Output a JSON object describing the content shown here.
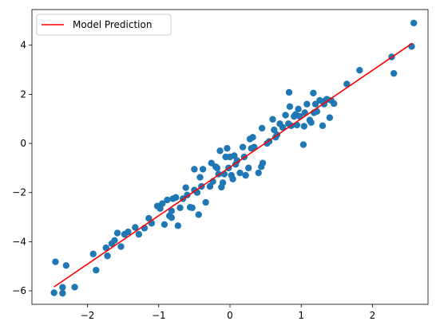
{
  "chart_data": {
    "type": "scatter",
    "title": "",
    "xlabel": "",
    "ylabel": "",
    "xlim": [
      -2.78,
      2.78
    ],
    "ylim": [
      -6.55,
      5.45
    ],
    "xticks": [
      -2,
      -1,
      0,
      1,
      2
    ],
    "yticks": [
      -6,
      -4,
      -2,
      0,
      2,
      4
    ],
    "xtick_labels": [
      "−2",
      "−1",
      "0",
      "1",
      "2"
    ],
    "ytick_labels": [
      "−6",
      "−4",
      "−2",
      "0",
      "2",
      "4"
    ],
    "grid": false,
    "legend": {
      "location": "top-left",
      "entries": [
        "Model Prediction"
      ]
    },
    "series": [
      {
        "type": "scatter",
        "color": "#1f77b4",
        "points": [
          [
            -2.47,
            -6.08
          ],
          [
            -2.45,
            -4.82
          ],
          [
            -2.35,
            -5.86
          ],
          [
            -2.35,
            -6.1
          ],
          [
            -2.3,
            -4.97
          ],
          [
            -2.18,
            -5.85
          ],
          [
            -1.92,
            -4.5
          ],
          [
            -1.88,
            -5.16
          ],
          [
            -1.74,
            -4.25
          ],
          [
            -1.72,
            -4.58
          ],
          [
            -1.66,
            -4.08
          ],
          [
            -1.62,
            -3.95
          ],
          [
            -1.58,
            -3.65
          ],
          [
            -1.53,
            -4.2
          ],
          [
            -1.48,
            -3.7
          ],
          [
            -1.43,
            -3.6
          ],
          [
            -1.28,
            -3.7
          ],
          [
            -1.2,
            -3.45
          ],
          [
            -1.14,
            -3.05
          ],
          [
            -1.1,
            -3.25
          ],
          [
            -1.02,
            -2.55
          ],
          [
            -0.98,
            -2.65
          ],
          [
            -0.95,
            -2.45
          ],
          [
            -0.92,
            -3.3
          ],
          [
            -0.88,
            -2.3
          ],
          [
            -0.85,
            -2.95
          ],
          [
            -0.82,
            -3.02
          ],
          [
            -0.8,
            -2.25
          ],
          [
            -0.76,
            -2.2
          ],
          [
            -0.73,
            -3.35
          ],
          [
            -0.7,
            -2.62
          ],
          [
            -0.66,
            -2.25
          ],
          [
            -0.62,
            -1.8
          ],
          [
            -0.6,
            -2.1
          ],
          [
            -0.56,
            -2.6
          ],
          [
            -0.53,
            -2.62
          ],
          [
            -0.5,
            -1.9
          ],
          [
            -0.5,
            -1.05
          ],
          [
            -0.46,
            -2.0
          ],
          [
            -0.44,
            -2.9
          ],
          [
            -0.42,
            -1.38
          ],
          [
            -0.4,
            -1.75
          ],
          [
            -0.38,
            -1.05
          ],
          [
            -0.34,
            -2.4
          ],
          [
            -0.28,
            -1.75
          ],
          [
            -0.26,
            -0.8
          ],
          [
            -0.24,
            -1.55
          ],
          [
            -0.2,
            -0.95
          ],
          [
            -0.18,
            -1.0
          ],
          [
            -0.16,
            -1.25
          ],
          [
            -0.14,
            -0.3
          ],
          [
            -0.12,
            -1.78
          ],
          [
            -0.1,
            -1.6
          ],
          [
            -0.08,
            -1.25
          ],
          [
            -0.06,
            -0.55
          ],
          [
            -0.04,
            -0.2
          ],
          [
            -0.02,
            -1.0
          ],
          [
            0.0,
            -0.55
          ],
          [
            0.02,
            -1.3
          ],
          [
            0.04,
            -1.45
          ],
          [
            0.06,
            -0.5
          ],
          [
            0.08,
            -0.85
          ],
          [
            0.1,
            -0.7
          ],
          [
            0.14,
            -1.2
          ],
          [
            0.18,
            -0.15
          ],
          [
            0.2,
            -0.55
          ],
          [
            0.22,
            -1.3
          ],
          [
            0.26,
            -1.0
          ],
          [
            0.28,
            0.18
          ],
          [
            0.3,
            -0.2
          ],
          [
            0.32,
            0.25
          ],
          [
            0.34,
            -0.15
          ],
          [
            0.4,
            -1.2
          ],
          [
            0.44,
            -0.95
          ],
          [
            0.46,
            -0.8
          ],
          [
            0.45,
            0.62
          ],
          [
            0.52,
            0.0
          ],
          [
            0.55,
            0.08
          ],
          [
            0.6,
            0.98
          ],
          [
            0.62,
            0.55
          ],
          [
            0.64,
            0.25
          ],
          [
            0.66,
            0.35
          ],
          [
            0.7,
            0.8
          ],
          [
            0.74,
            0.65
          ],
          [
            0.78,
            1.15
          ],
          [
            0.82,
            0.8
          ],
          [
            0.84,
            1.5
          ],
          [
            0.86,
            0.72
          ],
          [
            0.9,
            1.1
          ],
          [
            0.92,
            1.18
          ],
          [
            0.94,
            0.75
          ],
          [
            0.96,
            1.4
          ],
          [
            0.98,
            1.1
          ],
          [
            1.04,
            0.7
          ],
          [
            1.05,
            1.25
          ],
          [
            1.08,
            1.6
          ],
          [
            1.12,
            0.95
          ],
          [
            1.14,
            0.85
          ],
          [
            1.17,
            2.05
          ],
          [
            1.18,
            1.25
          ],
          [
            1.2,
            1.6
          ],
          [
            1.22,
            1.3
          ],
          [
            1.26,
            1.75
          ],
          [
            1.3,
            0.72
          ],
          [
            1.32,
            1.6
          ],
          [
            1.34,
            1.75
          ],
          [
            1.36,
            1.8
          ],
          [
            1.4,
            1.05
          ],
          [
            1.42,
            1.75
          ],
          [
            1.46,
            1.62
          ],
          [
            1.64,
            2.42
          ],
          [
            1.82,
            2.98
          ],
          [
            2.27,
            3.52
          ],
          [
            2.3,
            2.85
          ],
          [
            2.55,
            3.95
          ],
          [
            2.58,
            4.9
          ],
          [
            0.83,
            2.08
          ],
          [
            1.03,
            -0.05
          ],
          [
            -0.82,
            -2.75
          ],
          [
            -1.33,
            -3.42
          ]
        ]
      },
      {
        "type": "line",
        "name": "Model Prediction",
        "color": "#ff0000",
        "points": [
          [
            -2.47,
            -5.84
          ],
          [
            2.56,
            4.08
          ]
        ]
      }
    ]
  }
}
